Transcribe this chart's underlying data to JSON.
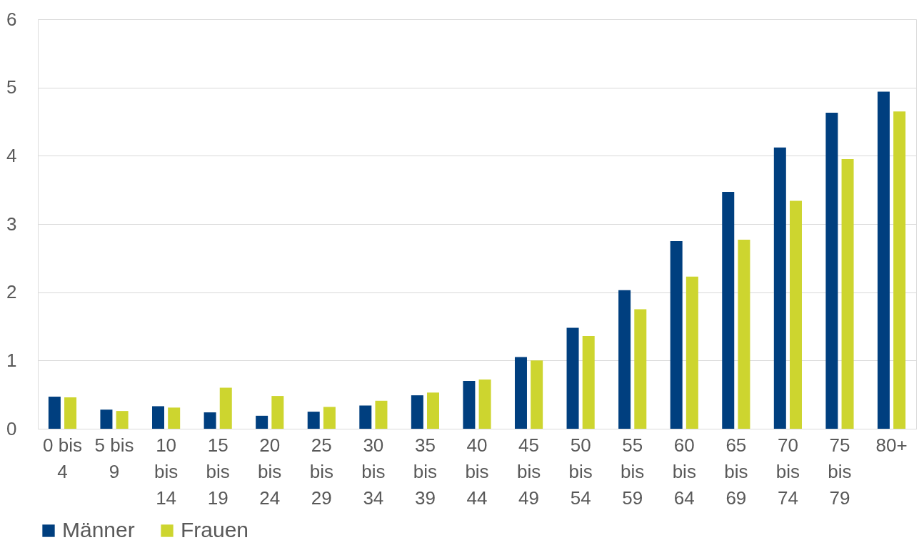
{
  "chart_data": {
    "type": "bar",
    "categories": [
      "0 bis 4",
      "5 bis 9",
      "10 bis 14",
      "15 bis 19",
      "20 bis 24",
      "25 bis 29",
      "30 bis 34",
      "35 bis 39",
      "40 bis 44",
      "45 bis 49",
      "50 bis 54",
      "55 bis 59",
      "60 bis 64",
      "65 bis 69",
      "70 bis 74",
      "75 bis 79",
      "80+"
    ],
    "series": [
      {
        "name": "Männer",
        "color": "#003f7f",
        "values": [
          0.47,
          0.28,
          0.33,
          0.24,
          0.19,
          0.25,
          0.34,
          0.49,
          0.7,
          1.05,
          1.48,
          2.03,
          2.75,
          3.47,
          4.12,
          4.63,
          4.94
        ]
      },
      {
        "name": "Frauen",
        "color": "#cdd52f",
        "values": [
          0.46,
          0.26,
          0.31,
          0.6,
          0.48,
          0.32,
          0.41,
          0.53,
          0.72,
          1.0,
          1.36,
          1.75,
          2.23,
          2.77,
          3.34,
          3.95,
          4.65
        ]
      }
    ],
    "ylim": [
      0,
      6
    ],
    "yticks": [
      0,
      1,
      2,
      3,
      4,
      5,
      6
    ],
    "grid": "y",
    "legend": "bottom"
  }
}
